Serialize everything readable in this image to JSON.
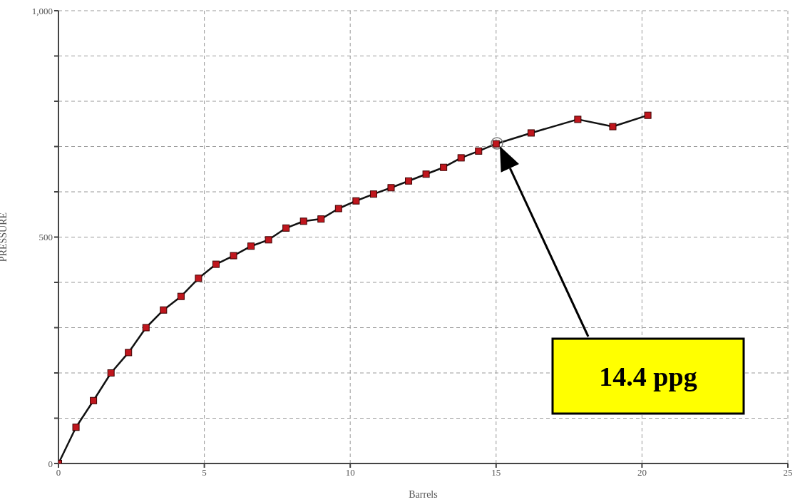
{
  "chart_data": {
    "type": "line",
    "xlabel": "Barrels",
    "ylabel": "PRESSURE",
    "x": [
      0,
      0.6,
      1.2,
      1.8,
      2.4,
      3.0,
      3.6,
      4.2,
      4.8,
      5.4,
      6.0,
      6.6,
      7.2,
      7.8,
      8.4,
      9.0,
      9.6,
      10.2,
      10.8,
      11.4,
      12.0,
      12.6,
      13.2,
      13.8,
      14.4,
      15.0,
      16.2,
      17.8,
      19.0,
      20.2
    ],
    "series": [
      {
        "color": "#c0161d",
        "values": [
          0,
          80,
          139,
          200,
          245,
          300,
          339,
          369,
          409,
          440,
          459,
          480,
          494,
          520,
          535,
          540,
          563,
          580,
          595,
          609,
          624,
          639,
          654,
          675,
          690,
          706,
          730,
          760,
          744,
          769
        ]
      }
    ],
    "xlim": [
      0,
      25
    ],
    "xticks": [
      0,
      5,
      10,
      15,
      20,
      25
    ],
    "ylim": [
      0,
      1000
    ],
    "yticks": [
      0,
      {
        "value": 100,
        "label": null
      },
      {
        "value": 200,
        "label": null
      },
      {
        "value": 300,
        "label": null
      },
      {
        "value": 400,
        "label": null
      },
      500,
      {
        "value": 600,
        "label": null
      },
      {
        "value": 700,
        "label": null
      },
      {
        "value": 800,
        "label": null
      },
      {
        "value": 900,
        "label": null
      },
      {
        "value": 1000,
        "label": "1,000"
      }
    ],
    "grid": true,
    "marker": "square",
    "line_style": "solid",
    "annotations": [
      "14.4 ppg"
    ]
  }
}
